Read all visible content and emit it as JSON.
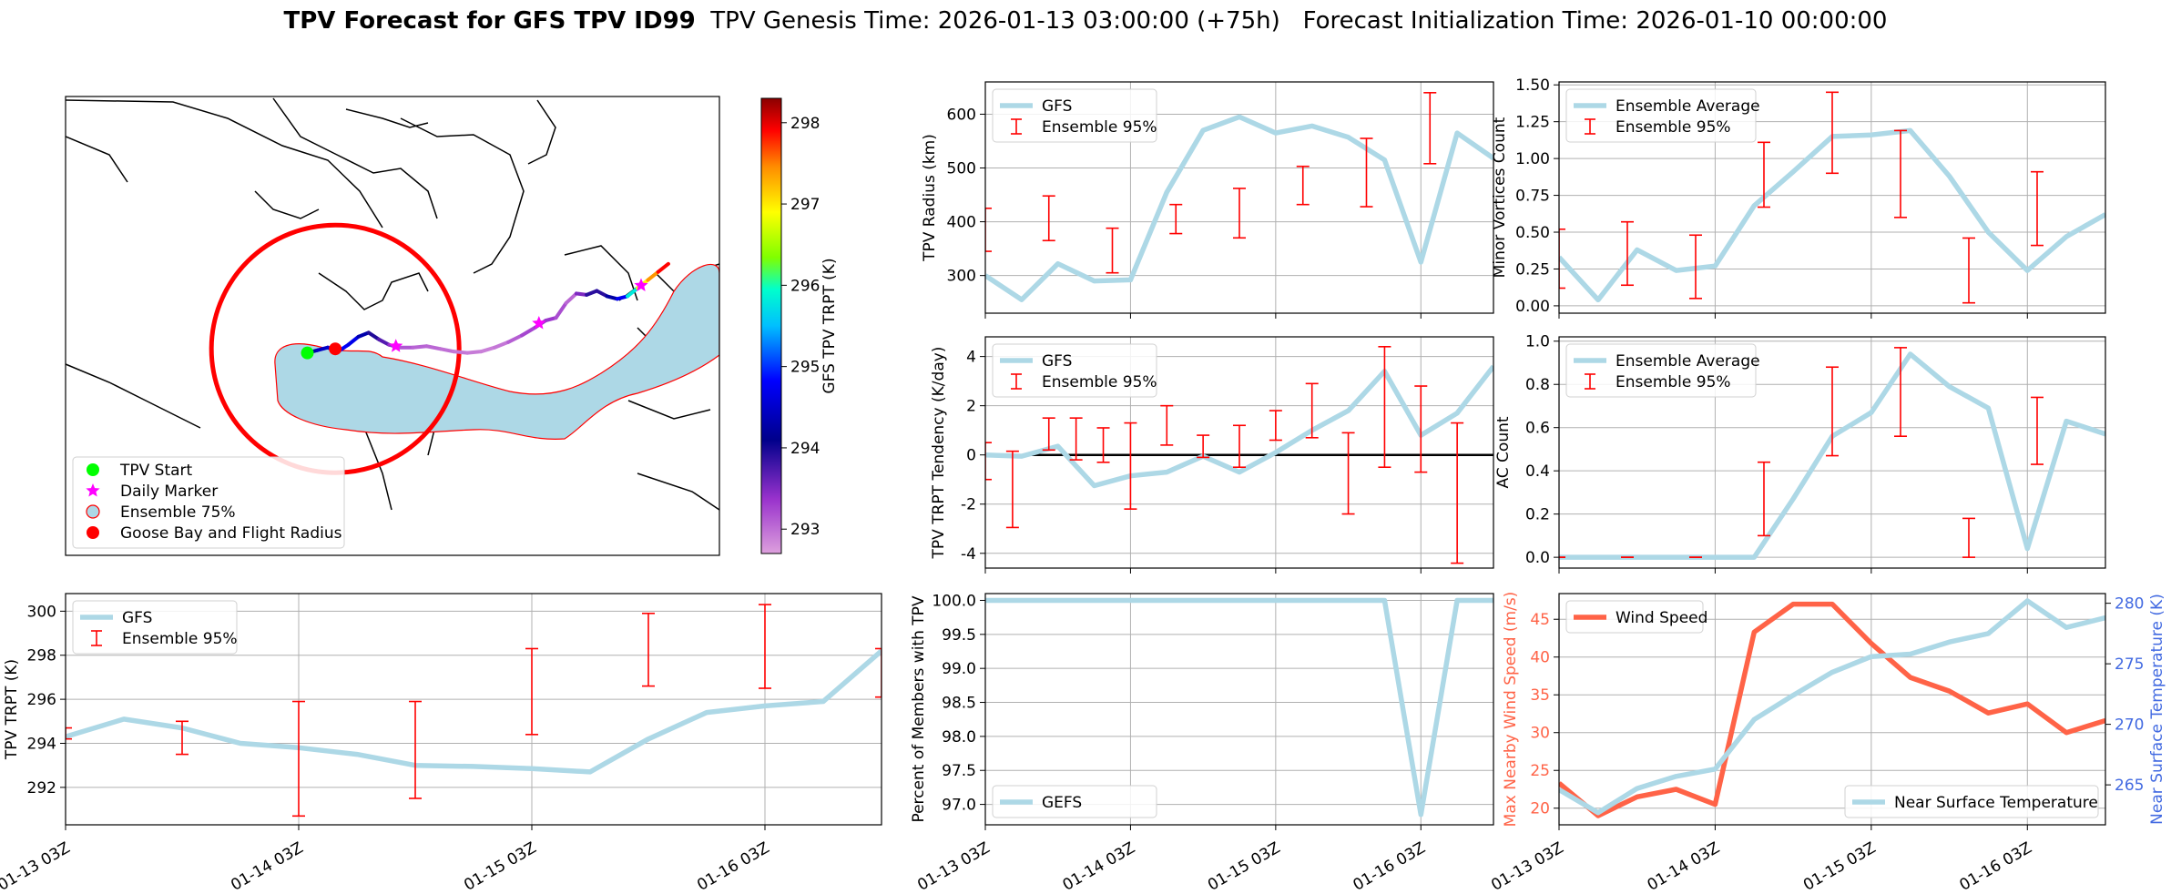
{
  "figure": {
    "title_bold": "TPV Forecast for GFS TPV ID99",
    "title_rest": "  TPV Genesis Time: 2026-01-13 03:00:00 (+75h)   Forecast Initialization Time: 2026-01-10 00:00:00"
  },
  "chart_data": [
    {
      "id": "map",
      "type": "map",
      "colorbar": {
        "label": "GFS TPV TRPT (K)",
        "range": [
          292.7,
          298.3
        ],
        "ticks": [
          293,
          294,
          295,
          296,
          297,
          298
        ]
      },
      "legend": {
        "placement": "lower-left",
        "entries": [
          "TPV Start",
          "Daily Marker",
          "Ensemble 75%",
          "Goose Bay and Flight Radius"
        ]
      },
      "track": {
        "lon": [
          -64.5,
          -63,
          -61.5,
          -60,
          -58.5,
          -57,
          -55.5,
          -54,
          -52.5,
          -51,
          -49,
          -47,
          -45,
          -43,
          -41,
          -39,
          -37,
          -35,
          -33,
          -31,
          -29.5,
          -28,
          -26.5,
          -25,
          -23.5,
          -22,
          -20.5,
          -19,
          -17.5,
          -16,
          -14.5,
          -13,
          -11.5
        ],
        "lat": [
          53.0,
          53.2,
          53.4,
          53.1,
          53.6,
          54.2,
          54.5,
          54.0,
          53.6,
          53.4,
          53.4,
          53.5,
          53.3,
          53.1,
          53.0,
          53.1,
          53.4,
          53.8,
          54.3,
          54.9,
          55.4,
          55.6,
          56.7,
          57.4,
          57.3,
          57.6,
          57.2,
          57.0,
          57.2,
          57.8,
          58.4,
          59.0,
          59.6
        ],
        "trpt": [
          294.0,
          294.5,
          294.4,
          294.7,
          294.9,
          294.5,
          294.1,
          293.8,
          293.6,
          293.2,
          293.1,
          293.05,
          293.05,
          292.95,
          292.95,
          292.9,
          292.9,
          293.0,
          293.2,
          293.3,
          293.4,
          293.3,
          293.1,
          293.0,
          294.0,
          293.8,
          294.0,
          294.5,
          295.0,
          296.6,
          297.2,
          297.6,
          298.2
        ]
      },
      "tpv_start": {
        "lon": -64.5,
        "lat": 53.0
      },
      "daily_markers": [
        {
          "lon": -51.5,
          "lat": 53.5
        },
        {
          "lon": -30.5,
          "lat": 55.2
        },
        {
          "lon": -15.5,
          "lat": 58.0
        }
      ],
      "goose_bay": {
        "lon": -60.4,
        "lat": 53.3
      }
    },
    {
      "id": "radius",
      "type": "line",
      "ylabel": "TPV Radius (km)",
      "ylim": [
        230,
        660
      ],
      "yticks": [
        300,
        400,
        500,
        600
      ],
      "legend": {
        "placement": "upper-left",
        "entries": [
          "GFS",
          "Ensemble 95%"
        ]
      },
      "series": [
        {
          "name": "GFS",
          "values": [
            300,
            255,
            322,
            290,
            292,
            455,
            570,
            595,
            565,
            578,
            557,
            515,
            325,
            565,
            518
          ]
        }
      ],
      "errorbars": [
        {
          "x": 0,
          "low": 345,
          "high": 425
        },
        {
          "x": 1.75,
          "low": 365,
          "high": 448
        },
        {
          "x": 3.5,
          "low": 305,
          "high": 388
        },
        {
          "x": 5.25,
          "low": 378,
          "high": 432
        },
        {
          "x": 7,
          "low": 370,
          "high": 462
        },
        {
          "x": 8.75,
          "low": 432,
          "high": 503
        },
        {
          "x": 10.5,
          "low": 428,
          "high": 555
        },
        {
          "x": 12.25,
          "low": 508,
          "high": 640
        }
      ]
    },
    {
      "id": "tendency",
      "type": "line",
      "ylabel": "TPV TRPT Tendency (K/day)",
      "ylim": [
        -4.6,
        4.8
      ],
      "yticks": [
        -4,
        -2,
        0,
        2,
        4
      ],
      "zero_line": true,
      "legend": {
        "placement": "upper-left",
        "entries": [
          "GFS",
          "Ensemble 95%"
        ]
      },
      "series": [
        {
          "name": "GFS",
          "values": [
            0.0,
            -0.05,
            0.35,
            -1.25,
            -0.85,
            -0.7,
            -0.05,
            -0.7,
            0.1,
            1.0,
            1.8,
            3.4,
            0.8,
            1.7,
            3.6
          ]
        }
      ],
      "errorbars": [
        {
          "x": 0,
          "low": -1.0,
          "high": 0.5
        },
        {
          "x": 0.75,
          "low": -2.95,
          "high": 0.15
        },
        {
          "x": 1.75,
          "low": 0.2,
          "high": 1.5
        },
        {
          "x": 2.5,
          "low": -0.2,
          "high": 1.5
        },
        {
          "x": 3.25,
          "low": -0.3,
          "high": 1.1
        },
        {
          "x": 4.0,
          "low": -2.2,
          "high": 1.3
        },
        {
          "x": 5.0,
          "low": 0.4,
          "high": 2.0
        },
        {
          "x": 6.0,
          "low": -0.1,
          "high": 0.8
        },
        {
          "x": 7.0,
          "low": -0.5,
          "high": 1.2
        },
        {
          "x": 8.0,
          "low": 0.6,
          "high": 1.8
        },
        {
          "x": 9.0,
          "low": 0.7,
          "high": 2.9
        },
        {
          "x": 10.0,
          "low": -2.4,
          "high": 0.9
        },
        {
          "x": 11.0,
          "low": -0.5,
          "high": 4.4
        },
        {
          "x": 12.0,
          "low": -0.7,
          "high": 2.8
        },
        {
          "x": 13.0,
          "low": -4.4,
          "high": 1.3
        }
      ]
    },
    {
      "id": "trpt",
      "type": "line",
      "ylabel": "TPV TRPT (K)",
      "ylim": [
        290.3,
        300.8
      ],
      "yticks": [
        292,
        294,
        296,
        298,
        300
      ],
      "legend": {
        "placement": "upper-left",
        "entries": [
          "GFS",
          "Ensemble 95%"
        ]
      },
      "series": [
        {
          "name": "GFS",
          "values": [
            294.3,
            295.1,
            294.7,
            294.0,
            293.8,
            293.5,
            293.0,
            292.95,
            292.85,
            292.7,
            294.2,
            295.4,
            295.7,
            295.9,
            298.2
          ]
        }
      ],
      "errorbars": [
        {
          "x": 0,
          "low": 294.2,
          "high": 294.7
        },
        {
          "x": 2.0,
          "low": 293.5,
          "high": 295.0
        },
        {
          "x": 4.0,
          "low": 290.7,
          "high": 295.9
        },
        {
          "x": 6.0,
          "low": 291.5,
          "high": 295.9
        },
        {
          "x": 8.0,
          "low": 294.4,
          "high": 298.3
        },
        {
          "x": 10.0,
          "low": 296.6,
          "high": 299.9
        },
        {
          "x": 12.0,
          "low": 296.5,
          "high": 300.3
        },
        {
          "x": 14.0,
          "low": 296.1,
          "high": 298.3
        }
      ]
    },
    {
      "id": "minor",
      "type": "line",
      "ylabel": "Minor Vortices Count",
      "ylim": [
        -0.05,
        1.52
      ],
      "yticks": [
        0.0,
        0.25,
        0.5,
        0.75,
        1.0,
        1.25,
        1.5
      ],
      "legend": {
        "placement": "upper-left",
        "entries": [
          "Ensemble Average",
          "Ensemble 95%"
        ]
      },
      "series": [
        {
          "name": "Ensemble Average",
          "values": [
            0.33,
            0.04,
            0.38,
            0.24,
            0.27,
            0.68,
            0.91,
            1.15,
            1.16,
            1.19,
            0.88,
            0.5,
            0.24,
            0.47,
            0.62
          ]
        }
      ],
      "errorbars": [
        {
          "x": 0,
          "low": 0.12,
          "high": 0.52
        },
        {
          "x": 1.75,
          "low": 0.14,
          "high": 0.57
        },
        {
          "x": 3.5,
          "low": 0.05,
          "high": 0.48
        },
        {
          "x": 5.25,
          "low": 0.67,
          "high": 1.11
        },
        {
          "x": 7,
          "low": 0.9,
          "high": 1.45
        },
        {
          "x": 8.75,
          "low": 0.6,
          "high": 1.19
        },
        {
          "x": 10.5,
          "low": 0.02,
          "high": 0.46
        },
        {
          "x": 12.25,
          "low": 0.41,
          "high": 0.91
        }
      ]
    },
    {
      "id": "ac",
      "type": "line",
      "ylabel": "AC Count",
      "ylim": [
        -0.05,
        1.02
      ],
      "yticks": [
        0.0,
        0.2,
        0.4,
        0.6,
        0.8,
        1.0
      ],
      "legend": {
        "placement": "upper-left",
        "entries": [
          "Ensemble Average",
          "Ensemble 95%"
        ]
      },
      "series": [
        {
          "name": "Ensemble Average",
          "values": [
            0,
            0,
            0,
            0,
            0,
            0,
            0.27,
            0.56,
            0.67,
            0.94,
            0.79,
            0.69,
            0.04,
            0.63,
            0.57
          ]
        }
      ],
      "errorbars": [
        {
          "x": 0,
          "low": 0,
          "high": 0
        },
        {
          "x": 1.75,
          "low": 0,
          "high": 0
        },
        {
          "x": 3.5,
          "low": 0,
          "high": 0
        },
        {
          "x": 5.25,
          "low": 0.1,
          "high": 0.44
        },
        {
          "x": 7,
          "low": 0.47,
          "high": 0.88
        },
        {
          "x": 8.75,
          "low": 0.56,
          "high": 0.97
        },
        {
          "x": 10.5,
          "low": 0.0,
          "high": 0.18
        },
        {
          "x": 12.25,
          "low": 0.43,
          "high": 0.74
        }
      ]
    },
    {
      "id": "members",
      "type": "line",
      "ylabel": "Percent of Members with TPV",
      "ylim": [
        96.7,
        100.1
      ],
      "yticks": [
        97.0,
        97.5,
        98.0,
        98.5,
        99.0,
        99.5,
        100.0
      ],
      "legend": {
        "placement": "lower-left",
        "entries": [
          "GEFS"
        ]
      },
      "series": [
        {
          "name": "GEFS",
          "values": [
            100,
            100,
            100,
            100,
            100,
            100,
            100,
            100,
            100,
            100,
            100,
            100,
            96.85,
            100,
            100
          ]
        }
      ]
    },
    {
      "id": "wind",
      "type": "line",
      "ylabel": "Max Nearby Wind Speed (m/s)",
      "ylabel_color": "#ff6347",
      "ylim": [
        17.8,
        48.4
      ],
      "yticks": [
        20,
        25,
        30,
        35,
        40,
        45
      ],
      "y2label": "Near Surface Temperature (K)",
      "y2label_color": "#4169e1",
      "y2lim": [
        261.7,
        280.8
      ],
      "y2ticks": [
        265,
        270,
        275,
        280
      ],
      "legend_left": {
        "placement": "upper-left",
        "entries": [
          "Wind Speed"
        ]
      },
      "legend_right": {
        "placement": "lower-right",
        "entries": [
          "Near Surface Temperature"
        ]
      },
      "series": [
        {
          "name": "Wind Speed",
          "axis": "left",
          "values": [
            23.3,
            19.0,
            21.5,
            22.5,
            20.5,
            43.3,
            47.0,
            47.0,
            41.8,
            37.3,
            35.5,
            32.6,
            33.8,
            30.0,
            31.6
          ]
        },
        {
          "name": "Near Surface Temperature",
          "axis": "right",
          "values": [
            264.6,
            262.7,
            264.7,
            265.7,
            266.3,
            270.4,
            272.4,
            274.3,
            275.6,
            275.8,
            276.8,
            277.5,
            280.2,
            278.0,
            278.8
          ]
        }
      ]
    }
  ],
  "x_axis": {
    "n_points": 15,
    "tick_positions": [
      0,
      4,
      8,
      12
    ],
    "tick_labels": [
      "01-13 03Z",
      "01-14 03Z",
      "01-15 03Z",
      "01-16 03Z"
    ]
  }
}
